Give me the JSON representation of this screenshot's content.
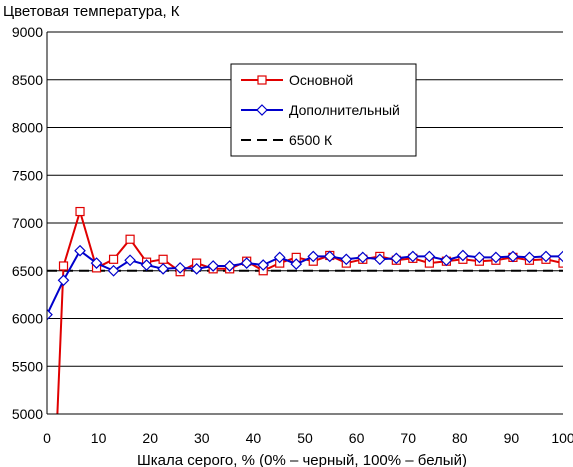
{
  "chart_data": {
    "type": "line",
    "title": "Цветовая температура, К",
    "xlabel": "Шкала серого, % (0% – черный, 100% – белый)",
    "ylabel": "",
    "xlim": [
      0,
      100
    ],
    "ylim": [
      5000,
      9000
    ],
    "xticks": [
      "0",
      "10",
      "20",
      "30",
      "40",
      "50",
      "60",
      "70",
      "80",
      "90",
      "100"
    ],
    "yticks": [
      "5000",
      "5500",
      "6000",
      "6500",
      "7000",
      "7500",
      "8000",
      "8500",
      "9000"
    ],
    "grid": "horizontal",
    "legend_position": "top-center",
    "reference": {
      "name": "6500 К",
      "value": 6500,
      "color": "#000000",
      "style": "dashed"
    },
    "series": [
      {
        "name": "Основной",
        "color": "#e00000",
        "marker": "square",
        "x": [
          2,
          3.2,
          6.4,
          9.6,
          12.9,
          16.1,
          19.3,
          22.5,
          25.8,
          29,
          32.2,
          35.4,
          38.7,
          41.9,
          45.1,
          48.3,
          51.6,
          54.8,
          58,
          61.2,
          64.5,
          67.7,
          70.9,
          74.1,
          77.4,
          80.6,
          83.8,
          87,
          90.3,
          93.5,
          96.7,
          100
        ],
        "values": [
          4980,
          6550,
          7120,
          6530,
          6620,
          6830,
          6590,
          6620,
          6490,
          6580,
          6520,
          6520,
          6600,
          6500,
          6580,
          6640,
          6600,
          6660,
          6580,
          6620,
          6650,
          6610,
          6630,
          6580,
          6600,
          6620,
          6600,
          6610,
          6640,
          6610,
          6620,
          6580
        ]
      },
      {
        "name": "Дополнительный",
        "color": "#0000cc",
        "marker": "diamond",
        "x": [
          0,
          3.2,
          6.4,
          9.6,
          12.9,
          16.1,
          19.3,
          22.5,
          25.8,
          29,
          32.2,
          35.4,
          38.7,
          41.9,
          45.1,
          48.3,
          51.6,
          54.8,
          58,
          61.2,
          64.5,
          67.7,
          70.9,
          74.1,
          77.4,
          80.6,
          83.8,
          87,
          90.3,
          93.5,
          96.7,
          100
        ],
        "values": [
          6040,
          6400,
          6710,
          6580,
          6500,
          6610,
          6560,
          6520,
          6530,
          6520,
          6550,
          6550,
          6580,
          6560,
          6640,
          6570,
          6650,
          6650,
          6620,
          6640,
          6620,
          6630,
          6650,
          6650,
          6610,
          6660,
          6640,
          6640,
          6650,
          6640,
          6650,
          6650
        ]
      }
    ]
  }
}
